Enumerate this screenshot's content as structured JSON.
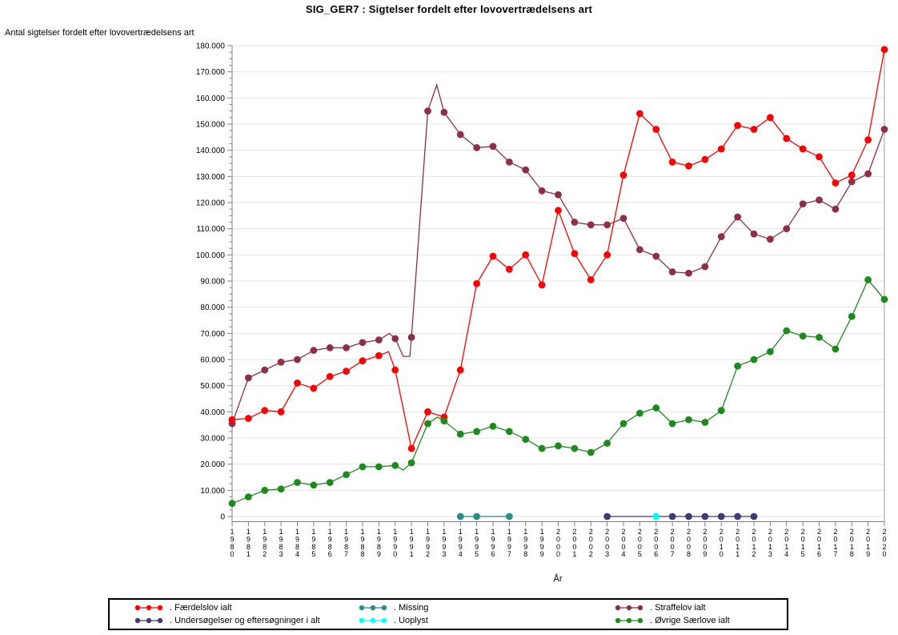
{
  "title": "SIG_GER7 : Sigtelser fordelt efter lovovertrædelsens art",
  "y_axis_title": "Antal sigtelser fordelt efter lovovertrædelsens art",
  "x_axis_title": "År",
  "colors": {
    "grid": "#e4e4e4",
    "axis": "#808080",
    "frame_right": "#9b9b9b",
    "background": "#ffffff",
    "text": "#000000"
  },
  "chart_data": {
    "type": "line",
    "title": "SIG_GER7 : Sigtelser fordelt efter lovovertrædelsens art",
    "xlabel": "År",
    "ylabel": "Antal sigtelser fordelt efter lovovertrædelsens art",
    "xlim": [
      1980,
      2020
    ],
    "ylim": [
      0,
      180000
    ],
    "y_tick_step": 10000,
    "y_minor_tick_step": 2500,
    "grid": "horizontal",
    "legend_position": "bottom",
    "years": [
      1980,
      1981,
      1982,
      1983,
      1984,
      1985,
      1986,
      1987,
      1988,
      1989,
      1990,
      1991,
      1992,
      1993,
      1994,
      1995,
      1996,
      1997,
      1998,
      1999,
      2000,
      2001,
      2002,
      2003,
      2004,
      2005,
      2006,
      2007,
      2008,
      2009,
      2010,
      2011,
      2012,
      2013,
      2014,
      2015,
      2016,
      2017,
      2018,
      2019,
      2020
    ],
    "series": [
      {
        "name": "Straffelov ialt",
        "legend_label": ". Straffelov ialt",
        "color": "#8e3044",
        "values": [
          35500,
          53000,
          56000,
          59000,
          60000,
          63500,
          64500,
          64500,
          66500,
          67500,
          68000,
          68500,
          155000,
          154500,
          146000,
          141000,
          141500,
          135500,
          132500,
          124500,
          123000,
          112500,
          111500,
          111500,
          114000,
          102000,
          99500,
          93500,
          93000,
          95500,
          107000,
          114500,
          108000,
          106000,
          110000,
          119500,
          121000,
          117500,
          128000,
          131000,
          148000
        ],
        "extra_line_vertices": [
          [
            1989.65,
            70000
          ],
          [
            1990.5,
            61200
          ],
          [
            1990.9,
            61200
          ],
          [
            1992.55,
            165000
          ]
        ]
      },
      {
        "name": "Færdelslov ialt",
        "legend_label": ". Færdelslov ialt",
        "color": "#ff0000",
        "values": [
          37000,
          37500,
          40500,
          40000,
          51000,
          49000,
          53500,
          55500,
          59500,
          61500,
          56000,
          26000,
          40000,
          38000,
          56000,
          89000,
          99500,
          94500,
          100000,
          88500,
          117000,
          100500,
          90500,
          100000,
          130500,
          154000,
          148000,
          135500,
          134000,
          136500,
          140500,
          149500,
          148000,
          152500,
          144500,
          140500,
          137500,
          127500,
          130500,
          144000,
          178500
        ],
        "extra_line_vertices": [
          [
            1989.6,
            63000
          ]
        ]
      },
      {
        "name": "Øvrige Særlove ialt",
        "legend_label": ". Øvrige Særlove ialt",
        "color": "#1d8a1d",
        "values": [
          5000,
          7500,
          10000,
          10500,
          13000,
          12000,
          13000,
          16000,
          19000,
          19000,
          19500,
          20500,
          35500,
          36500,
          31500,
          32500,
          34500,
          32500,
          29500,
          26000,
          27000,
          26000,
          24500,
          28000,
          35500,
          39500,
          41500,
          35500,
          37000,
          36000,
          40500,
          57500,
          60000,
          63000,
          71000,
          69000,
          68500,
          64000,
          76500,
          90500,
          83000
        ],
        "extra_line_vertices": [
          [
            1990.5,
            17800
          ],
          [
            1992.6,
            38000
          ]
        ]
      },
      {
        "name": "Missing",
        "legend_label": ". Missing",
        "color": "#2a8b8b",
        "constant_value": 0,
        "line_span_years": [
          1994,
          1997
        ],
        "marker_years": [
          1994,
          1995,
          1997
        ]
      },
      {
        "name": "Undersøgelser og eftersøgninger i alt",
        "legend_label": ". Undersøgelser og eftersøgninger i alt",
        "color": "#3c3c78",
        "constant_value": 0,
        "line_span_years": [
          2003,
          2012
        ],
        "marker_years": [
          2003,
          2007,
          2008,
          2009,
          2010,
          2011,
          2012
        ]
      },
      {
        "name": "Uoplyst",
        "legend_label": ". Uoplyst",
        "color": "#00ffff",
        "constant_value": 0,
        "line_span_years": [
          2006,
          2006
        ],
        "marker_years": [
          2006
        ]
      }
    ]
  },
  "legend": {
    "items": [
      {
        "label": ". Færdelslov ialt",
        "color": "#ff0000"
      },
      {
        "label": ". Missing",
        "color": "#2a8b8b"
      },
      {
        "label": ". Straffelov ialt",
        "color": "#8e3044"
      },
      {
        "label": ". Undersøgelser og eftersøgninger i alt",
        "color": "#3c3c78"
      },
      {
        "label": ". Uoplyst",
        "color": "#00ffff"
      },
      {
        "label": ". Øvrige Særlove ialt",
        "color": "#1d8a1d"
      }
    ]
  }
}
